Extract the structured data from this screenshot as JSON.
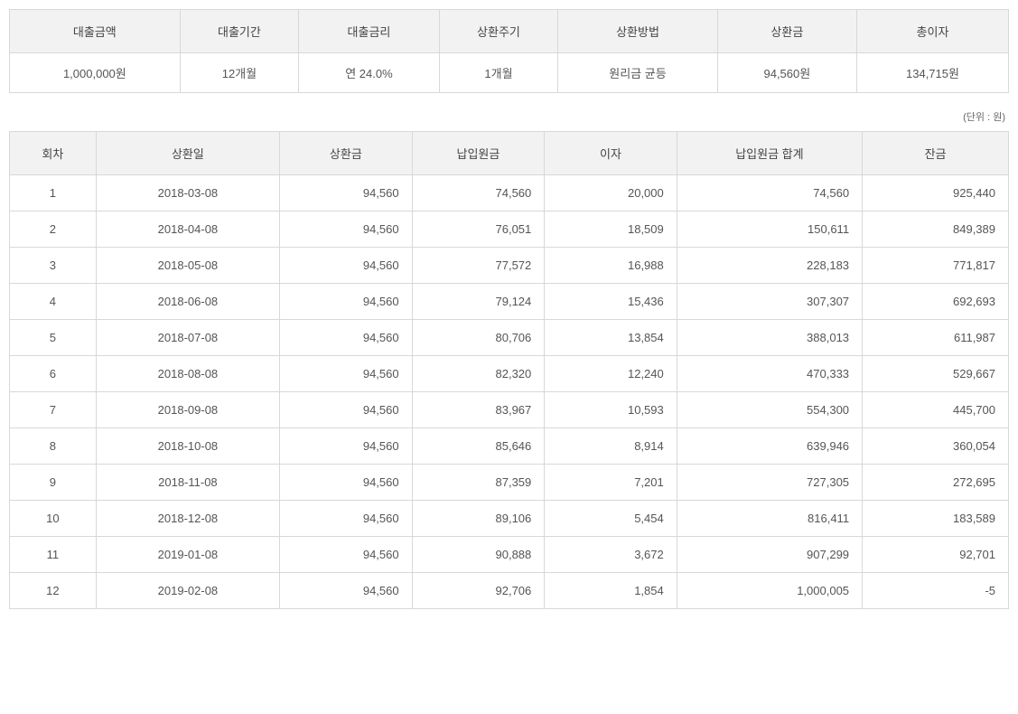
{
  "summary": {
    "headers": [
      "대출금액",
      "대출기간",
      "대출금리",
      "상환주기",
      "상환방법",
      "상환금",
      "총이자"
    ],
    "values": [
      "1,000,000원",
      "12개월",
      "연 24.0%",
      "1개월",
      "원리금 균등",
      "94,560원",
      "134,715원"
    ]
  },
  "unitLabel": "(단위 : 원)",
  "schedule": {
    "headers": [
      "회차",
      "상환일",
      "상환금",
      "납입원금",
      "이자",
      "납입원금 합계",
      "잔금"
    ],
    "rows": [
      [
        "1",
        "2018-03-08",
        "94,560",
        "74,560",
        "20,000",
        "74,560",
        "925,440"
      ],
      [
        "2",
        "2018-04-08",
        "94,560",
        "76,051",
        "18,509",
        "150,611",
        "849,389"
      ],
      [
        "3",
        "2018-05-08",
        "94,560",
        "77,572",
        "16,988",
        "228,183",
        "771,817"
      ],
      [
        "4",
        "2018-06-08",
        "94,560",
        "79,124",
        "15,436",
        "307,307",
        "692,693"
      ],
      [
        "5",
        "2018-07-08",
        "94,560",
        "80,706",
        "13,854",
        "388,013",
        "611,987"
      ],
      [
        "6",
        "2018-08-08",
        "94,560",
        "82,320",
        "12,240",
        "470,333",
        "529,667"
      ],
      [
        "7",
        "2018-09-08",
        "94,560",
        "83,967",
        "10,593",
        "554,300",
        "445,700"
      ],
      [
        "8",
        "2018-10-08",
        "94,560",
        "85,646",
        "8,914",
        "639,946",
        "360,054"
      ],
      [
        "9",
        "2018-11-08",
        "94,560",
        "87,359",
        "7,201",
        "727,305",
        "272,695"
      ],
      [
        "10",
        "2018-12-08",
        "94,560",
        "89,106",
        "5,454",
        "816,411",
        "183,589"
      ],
      [
        "11",
        "2019-01-08",
        "94,560",
        "90,888",
        "3,672",
        "907,299",
        "92,701"
      ],
      [
        "12",
        "2019-02-08",
        "94,560",
        "92,706",
        "1,854",
        "1,000,005",
        "-5"
      ]
    ],
    "columnAlign": [
      "center",
      "center",
      "right",
      "right",
      "right",
      "right",
      "right"
    ]
  },
  "colors": {
    "headerBg": "#f2f2f2",
    "border": "#d8d8d8",
    "text": "#444444",
    "bodyText": "#555555",
    "background": "#ffffff"
  }
}
